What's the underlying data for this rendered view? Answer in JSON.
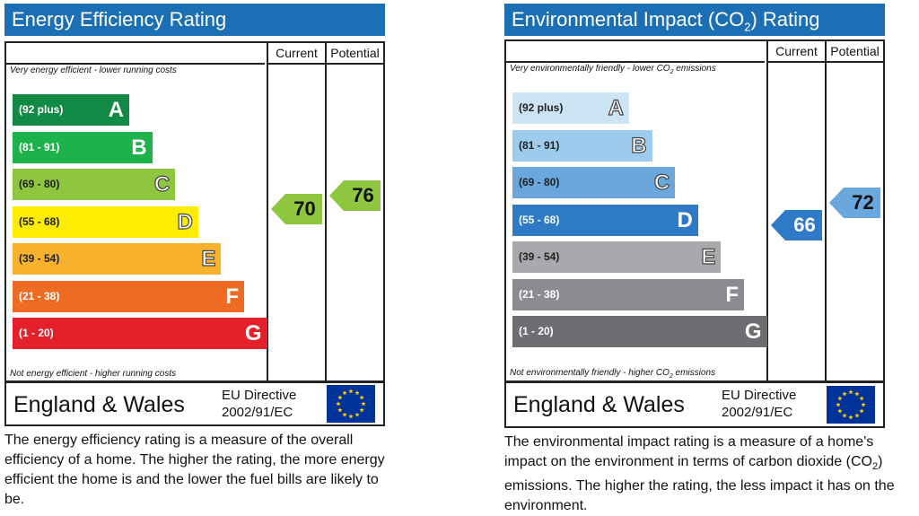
{
  "chart_data": [
    {
      "type": "bar",
      "title": "Energy Efficiency Rating",
      "columns": [
        "Current",
        "Potential"
      ],
      "top_note": "Very energy efficient - lower running costs",
      "bottom_note": "Not energy efficient - higher running costs",
      "categories": [
        "A",
        "B",
        "C",
        "D",
        "E",
        "F",
        "G"
      ],
      "bands": [
        {
          "letter": "A",
          "range": "(92 plus)",
          "min": 92,
          "max": 100,
          "color": "#118a45"
        },
        {
          "letter": "B",
          "range": "(81 - 91)",
          "min": 81,
          "max": 91,
          "color": "#1db34a"
        },
        {
          "letter": "C",
          "range": "(69 - 80)",
          "min": 69,
          "max": 80,
          "color": "#8ec63f"
        },
        {
          "letter": "D",
          "range": "(55 - 68)",
          "min": 55,
          "max": 68,
          "color": "#ffed00"
        },
        {
          "letter": "E",
          "range": "(39 - 54)",
          "min": 39,
          "max": 54,
          "color": "#f7b12c"
        },
        {
          "letter": "F",
          "range": "(21 - 38)",
          "min": 21,
          "max": 38,
          "color": "#ed6b22"
        },
        {
          "letter": "G",
          "range": "(1 - 20)",
          "min": 1,
          "max": 20,
          "color": "#e4202a"
        }
      ],
      "current": {
        "value": "70",
        "band": "C",
        "color": "#8ec63f"
      },
      "potential": {
        "value": "76",
        "band": "C",
        "color": "#8ec63f"
      },
      "region": "England & Wales",
      "directive_line1": "EU Directive",
      "directive_line2": "2002/91/EC",
      "caption": "The energy efficiency rating is a measure of the overall efficiency of a home. The higher the rating, the more energy efficient the home is and the lower the fuel bills are likely to be."
    },
    {
      "type": "bar",
      "title_prefix": "Environmental Impact (CO",
      "title_sub": "2",
      "title_suffix": ") Rating",
      "columns": [
        "Current",
        "Potential"
      ],
      "top_note_prefix": "Very environmentally friendly - lower CO",
      "top_note_sub": "2",
      "top_note_suffix": " emissions",
      "bottom_note_prefix": "Not environmentally friendly - higher CO",
      "bottom_note_sub": "2",
      "bottom_note_suffix": " emissions",
      "categories": [
        "A",
        "B",
        "C",
        "D",
        "E",
        "F",
        "G"
      ],
      "bands": [
        {
          "letter": "A",
          "range": "(92 plus)",
          "min": 92,
          "max": 100,
          "color": "#cde4f5"
        },
        {
          "letter": "B",
          "range": "(81 - 91)",
          "min": 81,
          "max": 91,
          "color": "#9ccbee"
        },
        {
          "letter": "C",
          "range": "(69 - 80)",
          "min": 69,
          "max": 80,
          "color": "#6aa7dd"
        },
        {
          "letter": "D",
          "range": "(55 - 68)",
          "min": 55,
          "max": 68,
          "color": "#2f7ac6"
        },
        {
          "letter": "E",
          "range": "(39 - 54)",
          "min": 39,
          "max": 54,
          "color": "#a7a9ac"
        },
        {
          "letter": "F",
          "range": "(21 - 38)",
          "min": 21,
          "max": 38,
          "color": "#8a8c8f"
        },
        {
          "letter": "G",
          "range": "(1 - 20)",
          "min": 1,
          "max": 20,
          "color": "#6d6e71"
        }
      ],
      "current": {
        "value": "66",
        "band": "D",
        "color": "#2f7ac6"
      },
      "potential": {
        "value": "72",
        "band": "C",
        "color": "#6aa7dd"
      },
      "region": "England & Wales",
      "directive_line1": "EU Directive",
      "directive_line2": "2002/91/EC",
      "caption_prefix": "The environmental impact rating is a measure of a home's impact on the environment in terms of carbon dioxide (CO",
      "caption_sub": "2",
      "caption_suffix": ") emissions. The higher the rating, the less impact it has on the environment."
    }
  ]
}
